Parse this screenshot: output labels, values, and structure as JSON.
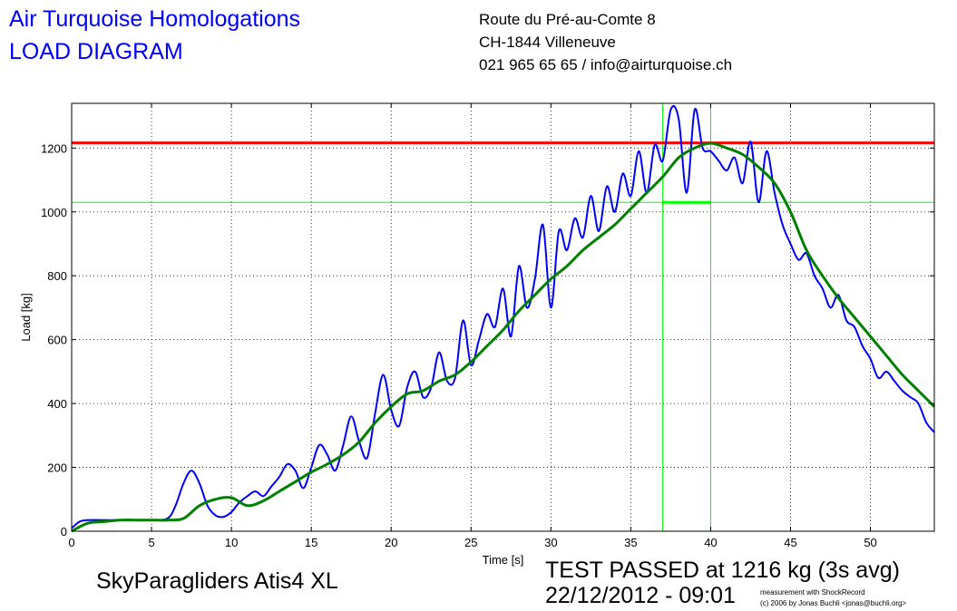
{
  "header": {
    "title_line1": "Air Turquoise Homologations",
    "title_line2": "LOAD DIAGRAM",
    "address_line1": "Route du Pré-au-Comte 8",
    "address_line2": "CH-1844 Villeneuve",
    "address_line3": "021 965 65 65 / info@airturquoise.ch"
  },
  "footer": {
    "glider_name": "SkyParagliders Atis4 XL",
    "test_result": "TEST PASSED at 1216 kg (3s avg)",
    "datetime": "22/12/2012 - 09:01",
    "credit_line1": "measurement with ShockRecord",
    "credit_line2": "(c) 2006 by Jonas Buchli <jonas@buchli.org>"
  },
  "colors": {
    "raw_series": "#0000ff",
    "avg_series": "#008000",
    "threshold": "#ff0000",
    "marker": "#00ff00",
    "grid": "#000000"
  },
  "chart_data": {
    "type": "line",
    "xlabel": "Time [s]",
    "ylabel": "Load [kg]",
    "xlim": [
      0,
      54
    ],
    "ylim": [
      0,
      1340
    ],
    "x_ticks": [
      0,
      5,
      10,
      15,
      20,
      25,
      30,
      35,
      40,
      45,
      50
    ],
    "y_ticks": [
      0,
      200,
      400,
      600,
      800,
      1000,
      1200
    ],
    "grid": true,
    "threshold_load": 1216,
    "marker_load": 1030,
    "marker_interval": [
      37,
      40
    ],
    "series": [
      {
        "key": "raw",
        "x": [
          0,
          0.5,
          1,
          2,
          3,
          4,
          5,
          6,
          6.5,
          7,
          7.5,
          8,
          8.5,
          9,
          9.5,
          10,
          10.5,
          11,
          11.5,
          12,
          12.5,
          13,
          13.5,
          14,
          14.5,
          15,
          15.5,
          16,
          16.5,
          17,
          17.5,
          18,
          18.5,
          19,
          19.5,
          20,
          20.5,
          21,
          21.5,
          22,
          22.5,
          23,
          23.5,
          24,
          24.5,
          25,
          25.5,
          26,
          26.5,
          27,
          27.5,
          28,
          28.5,
          29,
          29.5,
          30,
          30.5,
          31,
          31.5,
          32,
          32.5,
          33,
          33.5,
          34,
          34.5,
          35,
          35.5,
          36,
          36.5,
          37,
          37.5,
          38,
          38.5,
          39,
          39.5,
          40,
          40.5,
          41,
          41.5,
          42,
          42.5,
          43,
          43.5,
          44,
          44.5,
          45,
          45.5,
          46,
          46.5,
          47,
          47.5,
          48,
          48.5,
          49,
          49.5,
          50,
          50.5,
          51,
          51.5,
          52,
          52.5,
          53,
          53.5,
          54
        ],
        "y": [
          10,
          30,
          35,
          35,
          35,
          35,
          35,
          40,
          80,
          150,
          190,
          150,
          80,
          50,
          45,
          60,
          90,
          110,
          125,
          110,
          140,
          170,
          210,
          190,
          135,
          200,
          270,
          240,
          190,
          270,
          360,
          280,
          230,
          370,
          490,
          380,
          330,
          450,
          500,
          420,
          450,
          560,
          470,
          480,
          660,
          520,
          600,
          680,
          640,
          760,
          610,
          830,
          700,
          790,
          960,
          700,
          940,
          880,
          980,
          920,
          1050,
          940,
          1080,
          1000,
          1120,
          1050,
          1190,
          1060,
          1210,
          1160,
          1320,
          1290,
          1060,
          1320,
          1200,
          1190,
          1160,
          1130,
          1170,
          1090,
          1220,
          1030,
          1190,
          1060,
          960,
          900,
          850,
          870,
          800,
          760,
          700,
          740,
          660,
          640,
          580,
          540,
          480,
          500,
          470,
          440,
          420,
          400,
          340,
          310
        ]
      },
      {
        "key": "avg",
        "x": [
          0,
          1,
          2,
          3,
          4,
          5,
          6,
          7,
          8,
          9,
          10,
          11,
          12,
          13,
          14,
          15,
          16,
          17,
          18,
          19,
          20,
          21,
          22,
          23,
          24,
          25,
          26,
          27,
          28,
          29,
          30,
          31,
          32,
          33,
          34,
          35,
          36,
          37,
          38,
          39,
          40,
          41,
          42,
          43,
          44,
          45,
          46,
          47,
          48,
          49,
          50,
          51,
          52,
          53,
          54
        ],
        "y": [
          0,
          25,
          30,
          35,
          35,
          35,
          35,
          40,
          80,
          100,
          105,
          80,
          95,
          125,
          155,
          185,
          210,
          240,
          280,
          340,
          390,
          430,
          440,
          470,
          490,
          530,
          580,
          630,
          690,
          740,
          790,
          830,
          880,
          920,
          960,
          1010,
          1060,
          1110,
          1170,
          1200,
          1215,
          1200,
          1180,
          1140,
          1090,
          1000,
          880,
          800,
          730,
          670,
          610,
          550,
          490,
          440,
          390
        ]
      }
    ]
  }
}
